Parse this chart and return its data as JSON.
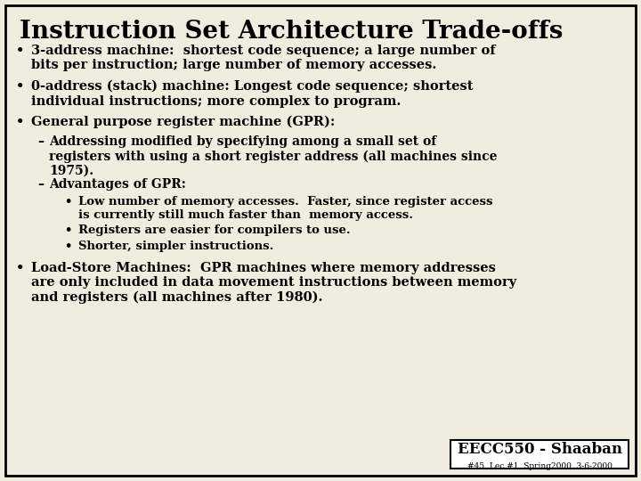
{
  "title": "Instruction Set Architecture Trade-offs",
  "background_color": "#f0ede0",
  "border_color": "#000000",
  "title_color": "#000000",
  "text_color": "#000000",
  "footer_box_color": "#ffffff",
  "footer_text": "EECC550 - Shaaban",
  "footer_small": "#45  Lec #1  Spring2000  3-6-2000",
  "bullet1": "3-address machine:  shortest code sequence; a large number of\nbits per instruction; large number of memory accesses.",
  "bullet2": "0-address (stack) machine: Longest code sequence; shortest\nindividual instructions; more complex to program.",
  "bullet3": "General purpose register machine (GPR):",
  "sub1": "Addressing modified by specifying among a small set of\nregisters with using a short register address (all machines since\n1975).",
  "sub2": "Advantages of GPR:",
  "subsub1": "Low number of memory accesses.  Faster, since register access\nis currently still much faster than  memory access.",
  "subsub2": "Registers are easier for compilers to use.",
  "subsub3": "Shorter, simpler instructions.",
  "bullet4": "Load-Store Machines:  GPR machines where memory addresses\nare only included in data movement instructions between memory\nand registers (all machines after 1980).",
  "title_fontsize": 20,
  "body_fontsize": 10.5,
  "sub_fontsize": 10.0,
  "subsub_fontsize": 9.5,
  "footer_fontsize": 12,
  "footer_small_fontsize": 6.5
}
